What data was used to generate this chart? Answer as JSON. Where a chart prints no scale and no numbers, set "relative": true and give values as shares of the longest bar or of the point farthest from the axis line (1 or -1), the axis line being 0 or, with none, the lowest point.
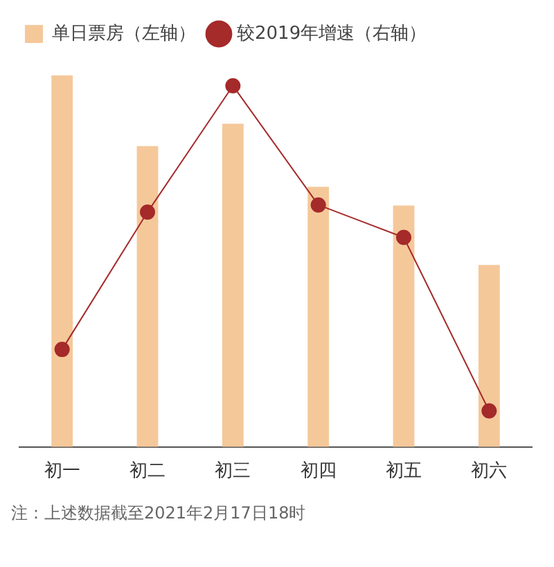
{
  "chart_data": {
    "type": "bar",
    "relative": true,
    "categories": [
      "初一",
      "初二",
      "初三",
      "初四",
      "初五",
      "初六"
    ],
    "series": [
      {
        "name": "单日票房（左轴）",
        "color": "#f5c89a",
        "values": [
          1,
          0.81,
          0.87,
          0.7,
          0.65,
          0.49
        ]
      },
      {
        "name": "较2019年增速（右轴）",
        "type": "line",
        "axis": "y2",
        "color": "#a52a2a",
        "values": [
          0.27,
          0.65,
          1,
          0.67,
          0.58,
          0.1
        ]
      }
    ],
    "legend": "top",
    "grid": false,
    "marker": "circle",
    "line_style": "solid",
    "annotations": [
      "注：上述数据截至2021年2月17日18时"
    ]
  }
}
